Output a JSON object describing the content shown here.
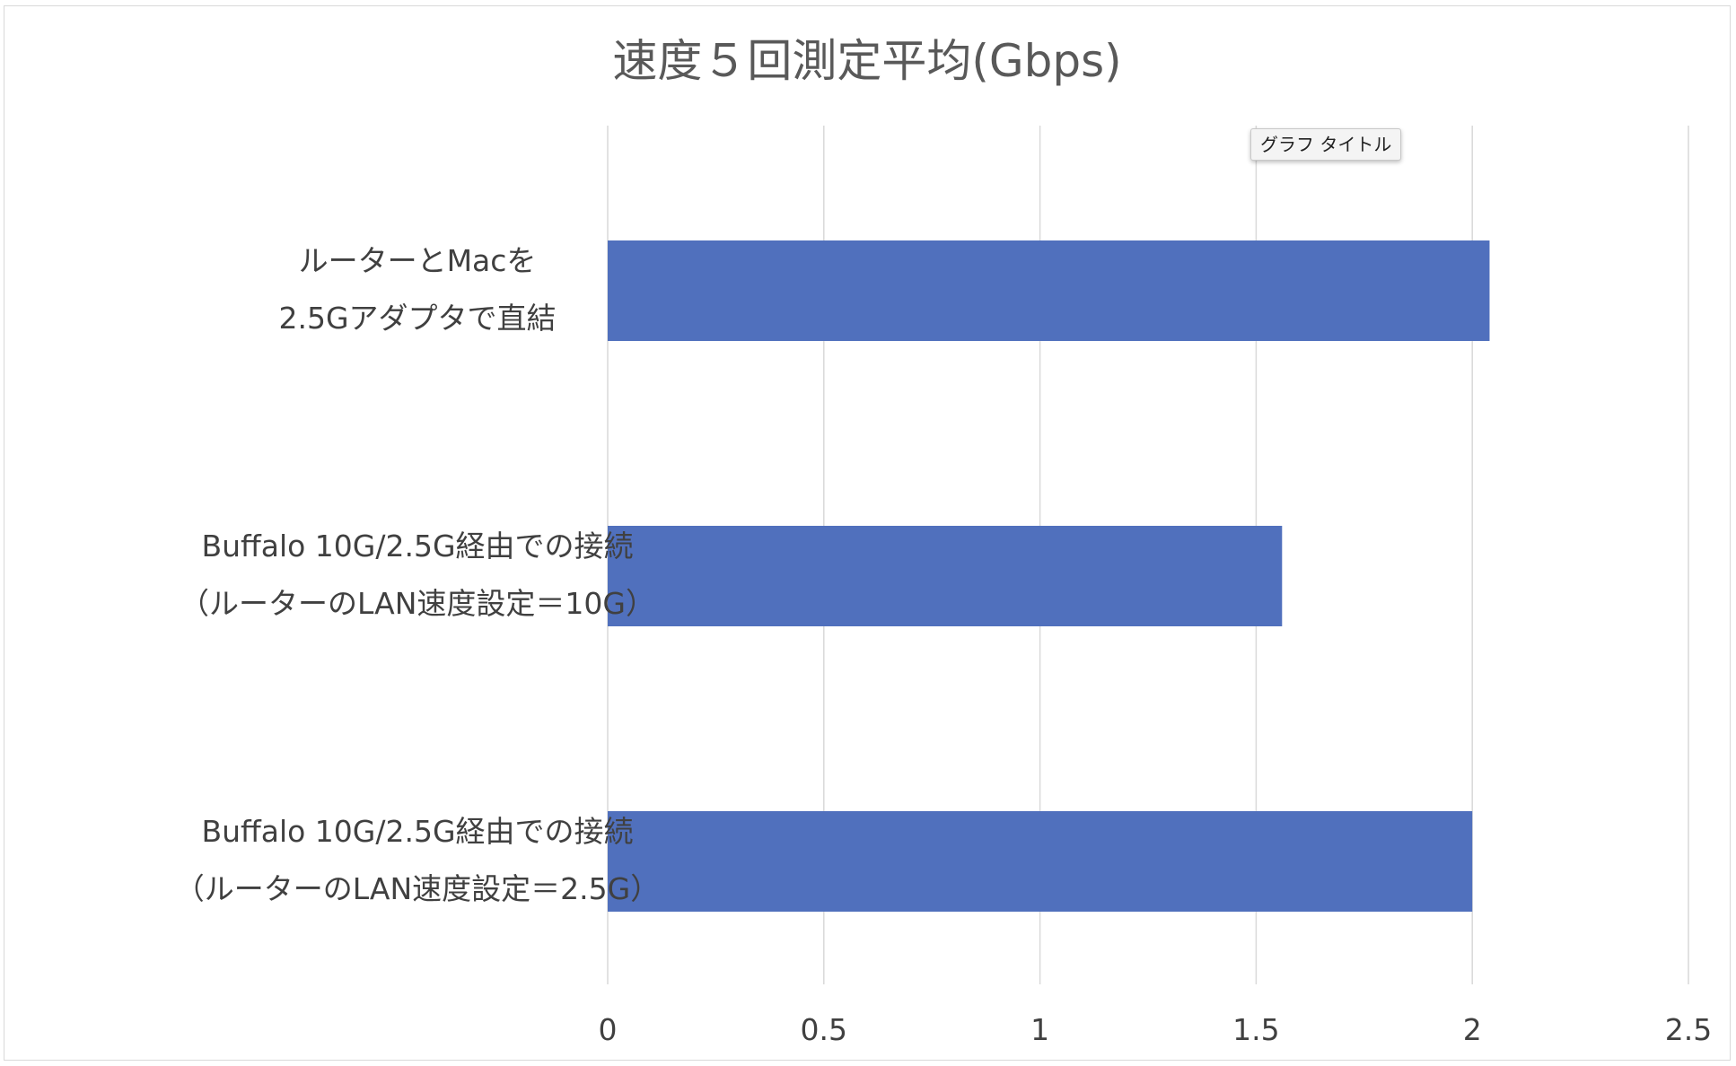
{
  "chart_data": {
    "type": "bar",
    "orientation": "horizontal",
    "title": "速度５回測定平均(Gbps)",
    "categories": [
      [
        "ルーターとMacを",
        "2.5Gアダプタで直結"
      ],
      [
        "Buffalo 10G/2.5G経由での接続",
        "（ルーターのLAN速度設定＝10G）"
      ],
      [
        "Buffalo 10G/2.5G経由での接続",
        "（ルーターのLAN速度設定＝2.5G）"
      ]
    ],
    "values": [
      2.04,
      1.56,
      2.0
    ],
    "xlim": [
      0,
      2.5
    ],
    "xticks": [
      "0",
      "0.5",
      "1",
      "1.5",
      "2",
      "2.5"
    ],
    "xtick_values": [
      0,
      0.5,
      1,
      1.5,
      2,
      2.5
    ],
    "grid": true,
    "bar_color": "#5070bd"
  },
  "tooltip": {
    "text": "グラフ タイトル"
  }
}
